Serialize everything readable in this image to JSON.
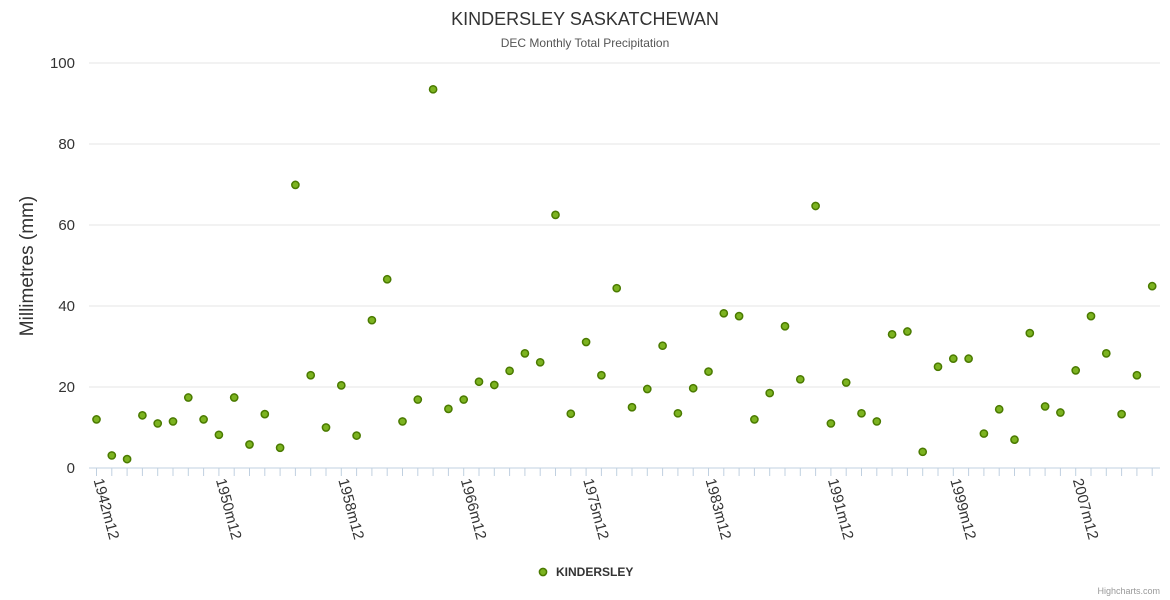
{
  "chart_data": {
    "type": "scatter",
    "title": "KINDERSLEY SASKATCHEWAN",
    "subtitle": "DEC Monthly Total Precipitation",
    "xlabel": "",
    "ylabel": "Millimetres (mm)",
    "ylim": [
      0,
      100
    ],
    "yticks": [
      0,
      20,
      40,
      60,
      80,
      100
    ],
    "xtick_labels": [
      "1942m12",
      "1950m12",
      "1958m12",
      "1966m12",
      "1975m12",
      "1983m12",
      "1991m12",
      "1999m12",
      "2007m12"
    ],
    "xtick_positions": [
      0,
      8,
      16,
      24,
      32,
      40,
      48,
      56,
      64
    ],
    "legend": "bottom-center",
    "credits": "Highcharts.com",
    "series": [
      {
        "name": "KINDERSLEY",
        "color": "#7cb320",
        "values": [
          12.0,
          3.1,
          2.2,
          13.0,
          11.0,
          11.5,
          17.4,
          12.0,
          8.2,
          17.4,
          5.8,
          13.3,
          5.0,
          69.9,
          22.9,
          10.0,
          20.4,
          8.0,
          36.5,
          46.6,
          11.5,
          16.9,
          93.5,
          14.6,
          16.9,
          21.3,
          20.5,
          24.0,
          28.3,
          26.1,
          62.5,
          13.4,
          31.1,
          22.9,
          44.4,
          15.0,
          19.5,
          30.2,
          13.5,
          19.7,
          23.8,
          38.2,
          37.5,
          12.0,
          18.5,
          35.0,
          21.9,
          64.7,
          11.0,
          21.1,
          13.5,
          11.5,
          33.0,
          33.7,
          4.0,
          25.0,
          27.0,
          27.0,
          8.5,
          14.5,
          7.0,
          33.3,
          15.2,
          13.7,
          24.1,
          37.5,
          28.3,
          13.3,
          22.9,
          44.9
        ]
      }
    ]
  }
}
